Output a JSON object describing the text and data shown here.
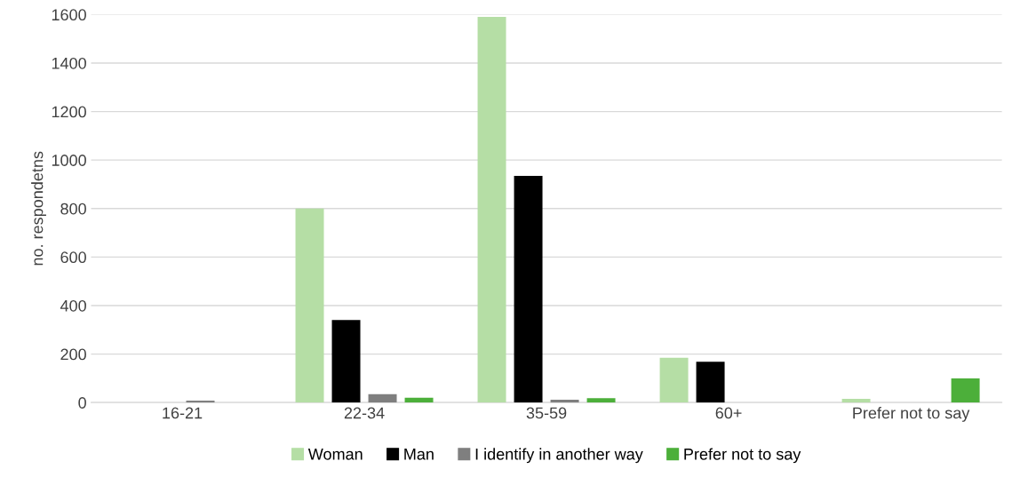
{
  "chart_data": {
    "type": "bar",
    "ylabel": "no. respondetns",
    "categories": [
      "16-21",
      "22-34",
      "35-59",
      "60+",
      "Prefer not to say"
    ],
    "series": [
      {
        "name": "Woman",
        "color": "#b5dea5",
        "values": [
          null,
          800,
          1590,
          185,
          15
        ]
      },
      {
        "name": "Man",
        "color": "#000000",
        "values": [
          0,
          340,
          935,
          168,
          0
        ]
      },
      {
        "name": "I identify in another way",
        "color": "#7f7f7f",
        "values": [
          8,
          35,
          12,
          null,
          0
        ]
      },
      {
        "name": "Prefer not to say",
        "color": "#4caf3a",
        "values": [
          0,
          20,
          18,
          null,
          100
        ]
      }
    ],
    "ylim": [
      0,
      1600
    ],
    "yticks": [
      0,
      200,
      400,
      600,
      800,
      1000,
      1200,
      1400,
      1600
    ],
    "grid": "y",
    "legend": "bottom"
  }
}
